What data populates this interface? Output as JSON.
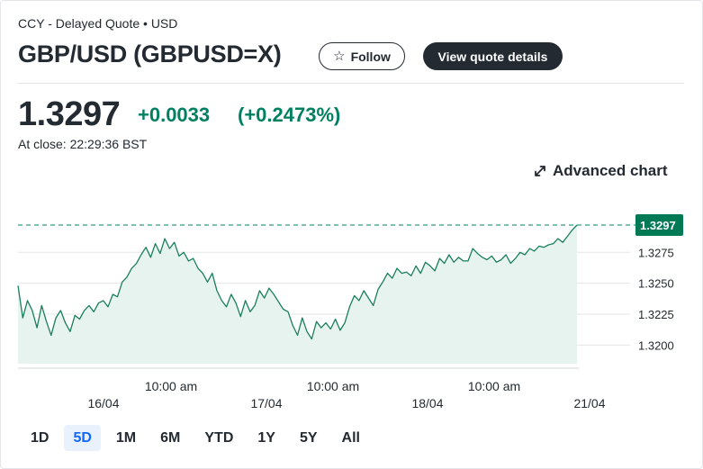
{
  "header": {
    "meta": "CCY - Delayed Quote • USD",
    "title": "GBP/USD (GBPUSD=X)",
    "follow_label": "Follow",
    "details_label": "View quote details"
  },
  "quote": {
    "price": "1.3297",
    "change": "+0.0033",
    "change_pct": "(+0.2473%)",
    "close_time": "At close: 22:29:36 BST"
  },
  "advanced_chart_label": "Advanced chart",
  "colors": {
    "up": "#008060",
    "line": "#1a7f5a",
    "fill": "#e6f3ee"
  },
  "chart_data": {
    "type": "area",
    "title": "GBP/USD 5D",
    "ylim": [
      1.3185,
      1.3305
    ],
    "yticks": [
      1.32,
      1.3225,
      1.325,
      1.3275
    ],
    "ytick_labels": [
      "1.3200",
      "1.3225",
      "1.3250",
      "1.3275"
    ],
    "last_value": 1.3297,
    "last_label": "1.3297",
    "x_time_labels": [
      "10:00 am",
      "10:00 am",
      "10:00 am"
    ],
    "x_day_labels": [
      "16/04",
      "17/04",
      "18/04",
      "21/04"
    ],
    "series": [
      {
        "name": "GBP/USD",
        "values": [
          1.3248,
          1.3222,
          1.3236,
          1.3228,
          1.3214,
          1.3232,
          1.3219,
          1.3208,
          1.3222,
          1.3228,
          1.3218,
          1.3211,
          1.3224,
          1.3221,
          1.3228,
          1.3232,
          1.3227,
          1.3234,
          1.3236,
          1.3231,
          1.3241,
          1.3239,
          1.3251,
          1.3255,
          1.3262,
          1.3266,
          1.3273,
          1.3279,
          1.3271,
          1.3282,
          1.3274,
          1.3286,
          1.3278,
          1.3283,
          1.3272,
          1.3275,
          1.3268,
          1.327,
          1.3262,
          1.3258,
          1.3251,
          1.3258,
          1.3244,
          1.3236,
          1.3231,
          1.3241,
          1.3234,
          1.3223,
          1.3236,
          1.3227,
          1.3232,
          1.3244,
          1.3238,
          1.3246,
          1.3241,
          1.3235,
          1.3229,
          1.3227,
          1.3216,
          1.3208,
          1.3222,
          1.3211,
          1.3205,
          1.3219,
          1.3214,
          1.3218,
          1.3213,
          1.3221,
          1.3212,
          1.3218,
          1.3231,
          1.324,
          1.3236,
          1.3244,
          1.3238,
          1.3232,
          1.3245,
          1.3251,
          1.3258,
          1.3254,
          1.3262,
          1.3258,
          1.3259,
          1.3256,
          1.3264,
          1.3258,
          1.3267,
          1.3264,
          1.326,
          1.327,
          1.3266,
          1.3273,
          1.3267,
          1.3271,
          1.3268,
          1.3268,
          1.3278,
          1.3274,
          1.3271,
          1.3269,
          1.3272,
          1.3267,
          1.3269,
          1.3273,
          1.3266,
          1.327,
          1.3275,
          1.3273,
          1.3278,
          1.3276,
          1.328,
          1.3279,
          1.3281,
          1.3282,
          1.3286,
          1.3283,
          1.3288,
          1.3293,
          1.3297
        ]
      }
    ]
  },
  "ranges": [
    "1D",
    "5D",
    "1M",
    "6M",
    "YTD",
    "1Y",
    "5Y",
    "All"
  ],
  "active_range": "5D"
}
